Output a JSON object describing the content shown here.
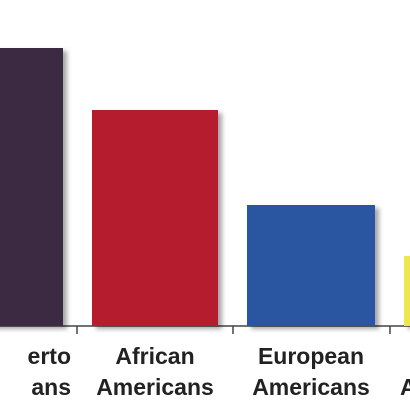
{
  "chart_data": {
    "type": "bar",
    "categories": [
      [
        "erto",
        "ans"
      ],
      [
        "African",
        "Americans"
      ],
      [
        "European",
        "Americans"
      ],
      [
        "A"
      ]
    ],
    "values": [
      278,
      216,
      121,
      70
    ],
    "colors": [
      "#3a2a42",
      "#b51f2d",
      "#2b56a1",
      "#efe64c"
    ]
  }
}
